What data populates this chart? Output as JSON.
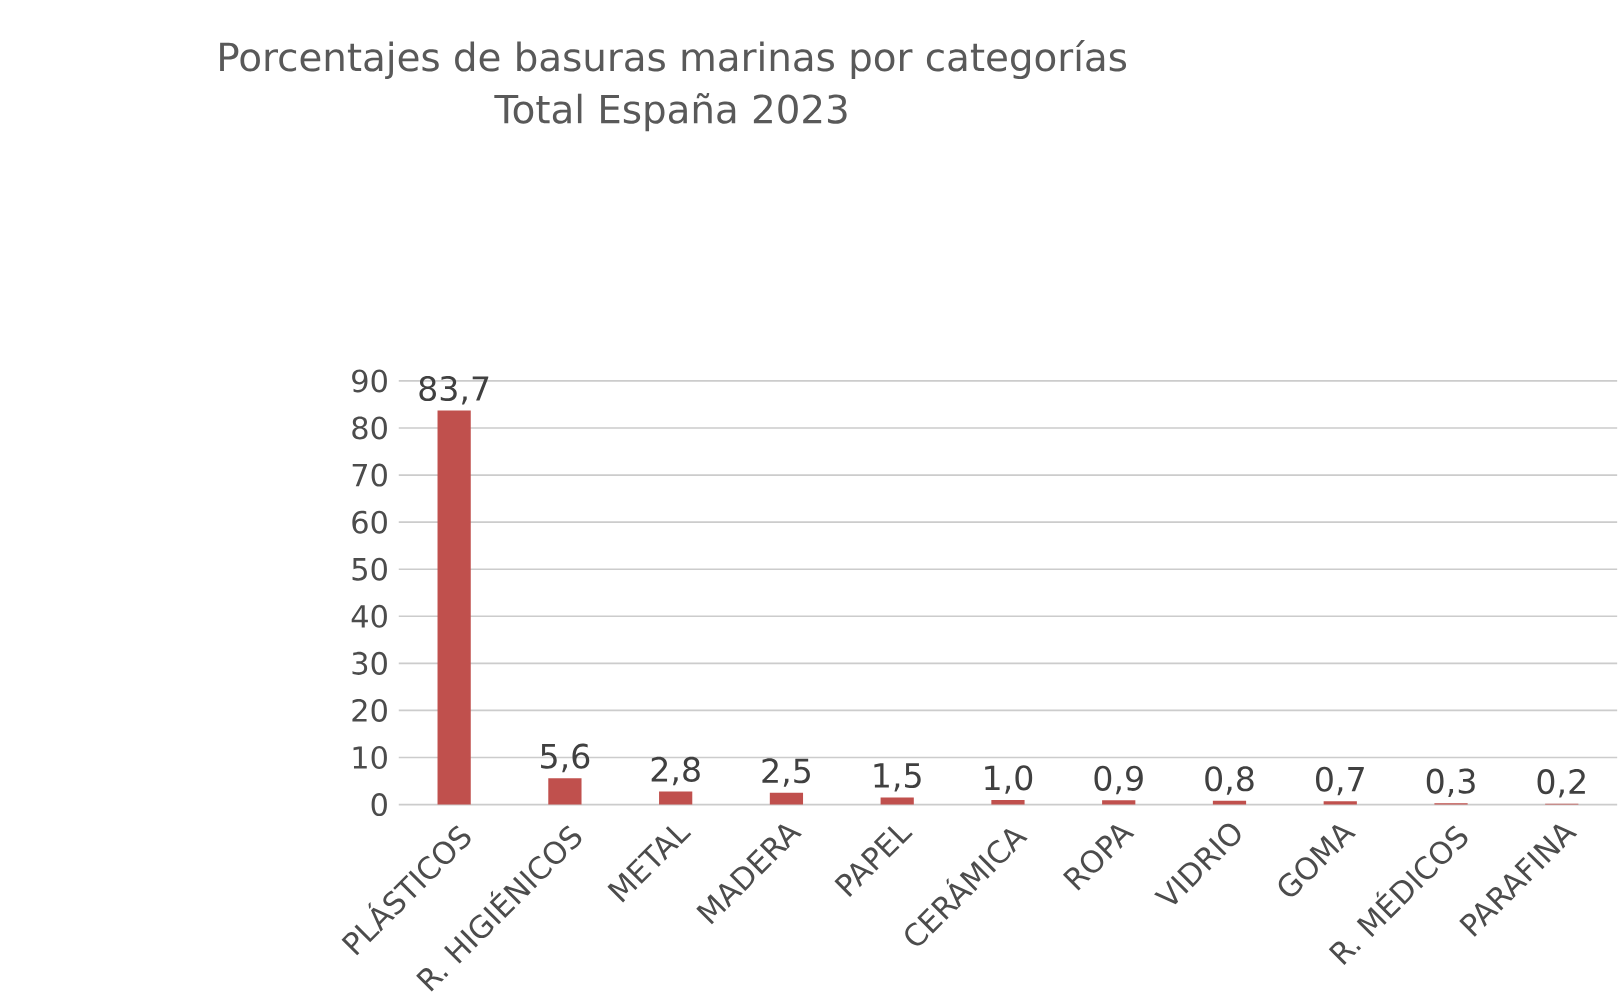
{
  "chart_data": {
    "type": "bar",
    "title": "Porcentajes de basuras marinas por categorías",
    "subtitle": "Total España 2023",
    "categories": [
      "PLÁSTICOS",
      "R. HIGIÉNICOS",
      "METAL",
      "MADERA",
      "PAPEL",
      "CERÁMICA",
      "ROPA",
      "VIDRIO",
      "GOMA",
      "R. MÉDICOS",
      "PARAFINA"
    ],
    "values": [
      83.7,
      5.6,
      2.8,
      2.5,
      1.5,
      1.0,
      0.9,
      0.8,
      0.7,
      0.3,
      0.2
    ],
    "value_labels": [
      "83,7",
      "5,6",
      "2,8",
      "2,5",
      "1,5",
      "1,0",
      "0,9",
      "0,8",
      "0,7",
      "0,3",
      "0,2"
    ],
    "color": "#c0504d",
    "ylim": [
      0,
      90
    ],
    "yticks": [
      0,
      10,
      20,
      30,
      40,
      50,
      60,
      70,
      80,
      90
    ],
    "grid": "y"
  }
}
